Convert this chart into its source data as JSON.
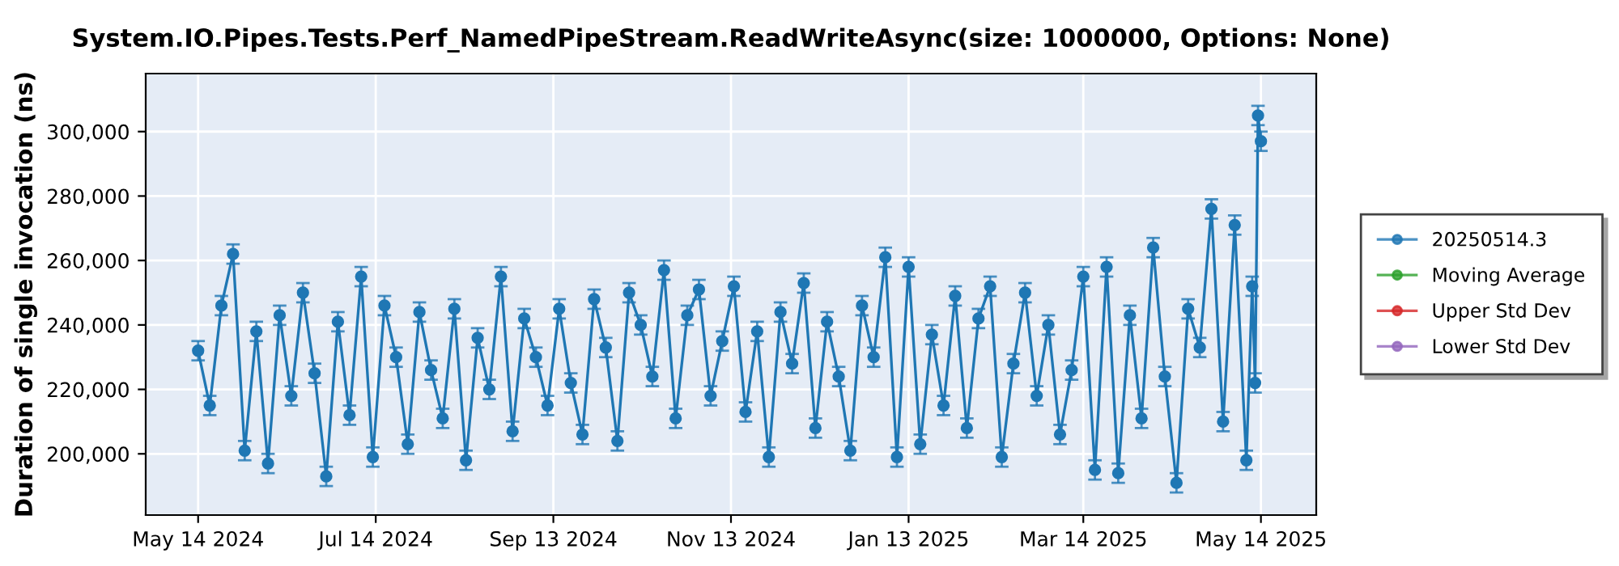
{
  "chart_data": {
    "type": "line",
    "title": "System.IO.Pipes.Tests.Perf_NamedPipeStream.ReadWriteAsync(size: 1000000, Options: None)",
    "ylabel": "Duration of single invocation (ns)",
    "xlim": [
      "2024-04-26",
      "2025-06-02"
    ],
    "xticks": [
      {
        "value": "2024-05-14",
        "label": "May 14 2024"
      },
      {
        "value": "2024-07-14",
        "label": "Jul 14 2024"
      },
      {
        "value": "2024-09-13",
        "label": "Sep 13 2024"
      },
      {
        "value": "2024-11-13",
        "label": "Nov 13 2024"
      },
      {
        "value": "2025-01-13",
        "label": "Jan 13 2025"
      },
      {
        "value": "2025-03-14",
        "label": "Mar 14 2025"
      },
      {
        "value": "2025-05-14",
        "label": "May 14 2025"
      }
    ],
    "ylim": [
      181000,
      318000
    ],
    "yticks": [
      {
        "value": 200000,
        "label": "200,000"
      },
      {
        "value": 220000,
        "label": "220,000"
      },
      {
        "value": 240000,
        "label": "240,000"
      },
      {
        "value": 260000,
        "label": "260,000"
      },
      {
        "value": 280000,
        "label": "280,000"
      },
      {
        "value": 300000,
        "label": "300,000"
      }
    ],
    "grid": true,
    "legend": "right",
    "marker": "circle",
    "line_style": "solid",
    "series": [
      {
        "name": "20250514.3",
        "color": "#1f77b4",
        "x": [
          "2024-05-14",
          "2024-05-18",
          "2024-05-22",
          "2024-05-26",
          "2024-05-30",
          "2024-06-03",
          "2024-06-07",
          "2024-06-11",
          "2024-06-15",
          "2024-06-19",
          "2024-06-23",
          "2024-06-27",
          "2024-07-01",
          "2024-07-05",
          "2024-07-09",
          "2024-07-13",
          "2024-07-17",
          "2024-07-21",
          "2024-07-25",
          "2024-07-29",
          "2024-08-02",
          "2024-08-06",
          "2024-08-10",
          "2024-08-14",
          "2024-08-18",
          "2024-08-22",
          "2024-08-26",
          "2024-08-30",
          "2024-09-03",
          "2024-09-07",
          "2024-09-11",
          "2024-09-15",
          "2024-09-19",
          "2024-09-23",
          "2024-09-27",
          "2024-10-01",
          "2024-10-05",
          "2024-10-09",
          "2024-10-13",
          "2024-10-17",
          "2024-10-21",
          "2024-10-25",
          "2024-10-29",
          "2024-11-02",
          "2024-11-06",
          "2024-11-10",
          "2024-11-14",
          "2024-11-18",
          "2024-11-22",
          "2024-11-26",
          "2024-11-30",
          "2024-12-04",
          "2024-12-08",
          "2024-12-12",
          "2024-12-16",
          "2024-12-20",
          "2024-12-24",
          "2024-12-28",
          "2025-01-01",
          "2025-01-05",
          "2025-01-09",
          "2025-01-13",
          "2025-01-17",
          "2025-01-21",
          "2025-01-25",
          "2025-01-29",
          "2025-02-02",
          "2025-02-06",
          "2025-02-10",
          "2025-02-14",
          "2025-02-18",
          "2025-02-22",
          "2025-02-26",
          "2025-03-02",
          "2025-03-06",
          "2025-03-10",
          "2025-03-14",
          "2025-03-18",
          "2025-03-22",
          "2025-03-26",
          "2025-03-30",
          "2025-04-03",
          "2025-04-07",
          "2025-04-11",
          "2025-04-15",
          "2025-04-19",
          "2025-04-23",
          "2025-04-27",
          "2025-05-01",
          "2025-05-05",
          "2025-05-09",
          "2025-05-11",
          "2025-05-12",
          "2025-05-13",
          "2025-05-14"
        ],
        "values": [
          232000,
          215000,
          246000,
          262000,
          201000,
          238000,
          197000,
          243000,
          218000,
          250000,
          225000,
          193000,
          241000,
          212000,
          255000,
          199000,
          246000,
          230000,
          203000,
          244000,
          226000,
          211000,
          245000,
          198000,
          236000,
          220000,
          255000,
          207000,
          242000,
          230000,
          215000,
          245000,
          222000,
          206000,
          248000,
          233000,
          204000,
          250000,
          240000,
          224000,
          257000,
          211000,
          243000,
          251000,
          218000,
          235000,
          252000,
          213000,
          238000,
          199000,
          244000,
          228000,
          253000,
          208000,
          241000,
          224000,
          201000,
          246000,
          230000,
          261000,
          199000,
          258000,
          203000,
          237000,
          215000,
          249000,
          208000,
          242000,
          252000,
          199000,
          228000,
          250000,
          218000,
          240000,
          206000,
          226000,
          255000,
          195000,
          258000,
          194000,
          243000,
          211000,
          264000,
          224000,
          191000,
          245000,
          233000,
          276000,
          210000,
          271000,
          198000,
          252000,
          222000,
          305000,
          297000
        ],
        "errors": [
          3000,
          3000,
          3000,
          3000,
          3000,
          3000,
          3000,
          3000,
          3000,
          3000,
          3000,
          3000,
          3000,
          3000,
          3000,
          3000,
          3000,
          3000,
          3000,
          3000,
          3000,
          3000,
          3000,
          3000,
          3000,
          3000,
          3000,
          3000,
          3000,
          3000,
          3000,
          3000,
          3000,
          3000,
          3000,
          3000,
          3000,
          3000,
          3000,
          3000,
          3000,
          3000,
          3000,
          3000,
          3000,
          3000,
          3000,
          3000,
          3000,
          3000,
          3000,
          3000,
          3000,
          3000,
          3000,
          3000,
          3000,
          3000,
          3000,
          3000,
          3000,
          3000,
          3000,
          3000,
          3000,
          3000,
          3000,
          3000,
          3000,
          3000,
          3000,
          3000,
          3000,
          3000,
          3000,
          3000,
          3000,
          3000,
          3000,
          3000,
          3000,
          3000,
          3000,
          3000,
          3000,
          3000,
          3000,
          3000,
          3000,
          3000,
          3000,
          3000,
          3000,
          3000,
          3000
        ]
      },
      {
        "name": "Moving Average",
        "color": "#2ca02c"
      },
      {
        "name": "Upper Std Dev",
        "color": "#d62728"
      },
      {
        "name": "Lower Std Dev",
        "color": "#9467bd"
      }
    ]
  }
}
